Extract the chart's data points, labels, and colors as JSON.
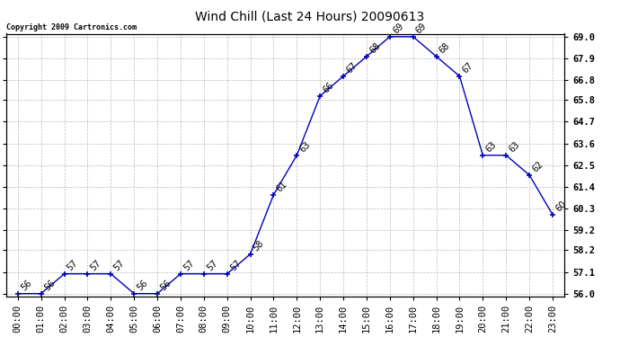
{
  "title": "Wind Chill (Last 24 Hours) 20090613",
  "copyright": "Copyright 2009 Cartronics.com",
  "x_labels": [
    "00:00",
    "01:00",
    "02:00",
    "03:00",
    "04:00",
    "05:00",
    "06:00",
    "07:00",
    "08:00",
    "09:00",
    "10:00",
    "11:00",
    "12:00",
    "13:00",
    "14:00",
    "15:00",
    "16:00",
    "17:00",
    "18:00",
    "19:00",
    "20:00",
    "21:00",
    "22:00",
    "23:00"
  ],
  "y_values": [
    56,
    56,
    57,
    57,
    57,
    56,
    56,
    57,
    57,
    57,
    58,
    61,
    63,
    66,
    67,
    68,
    69,
    69,
    68,
    67,
    63,
    63,
    62,
    60
  ],
  "ylim_min": 56.0,
  "ylim_max": 69.0,
  "y_ticks": [
    56.0,
    57.1,
    58.2,
    59.2,
    60.3,
    61.4,
    62.5,
    63.6,
    64.7,
    65.8,
    66.8,
    67.9,
    69.0
  ],
  "line_color": "#0000bb",
  "marker": "+",
  "marker_color": "#0000bb",
  "bg_color": "#ffffff",
  "grid_color": "#bbbbbb",
  "title_fontsize": 10,
  "tick_fontsize": 7.5,
  "annotation_fontsize": 7
}
